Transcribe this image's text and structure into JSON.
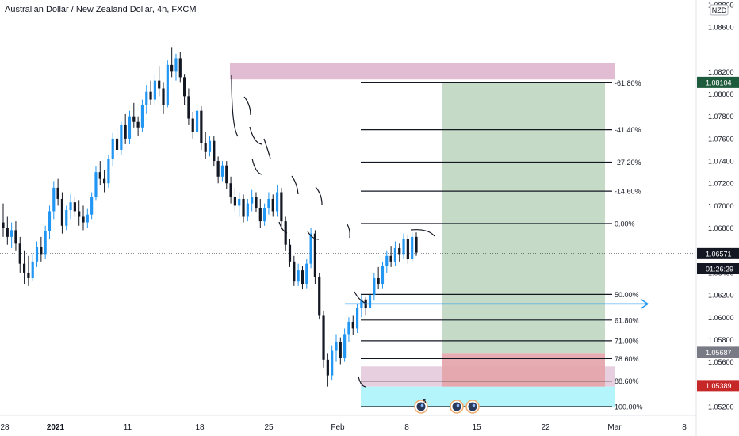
{
  "chart_data": {
    "type": "candlestick",
    "title": "Australian Dollar / New Zealand Dollar, 4h, FXCM",
    "currency_label": "NZD",
    "ylim": [
      1.052,
      1.0882
    ],
    "price_ticks": [
      "1.08800",
      "1.08600",
      "1.08200",
      "1.08000",
      "1.07800",
      "1.07600",
      "1.07400",
      "1.07200",
      "1.07000",
      "1.06800",
      "1.06400",
      "1.06200",
      "1.06000",
      "1.05800",
      "1.05600",
      "1.05200"
    ],
    "x_ticks": [
      "28",
      "2021",
      "11",
      "18",
      "25",
      "Feb",
      "8",
      "15",
      "22",
      "Mar",
      "8"
    ],
    "price_badges": [
      {
        "label": "1.08104",
        "value": 1.08104,
        "color": "#1e5a3c"
      },
      {
        "label": "1.06571",
        "value": 1.06571,
        "color": "#131722"
      },
      {
        "label": "01:26:29",
        "value": 1.06435,
        "color": "#131722"
      },
      {
        "label": "1.05687",
        "value": 1.05687,
        "color": "#787b86"
      },
      {
        "label": "1.05389",
        "value": 1.05389,
        "color": "#c62828"
      }
    ],
    "current_price": 1.06571,
    "candles": [
      {
        "o": 1.0685,
        "h": 1.0702,
        "l": 1.0672,
        "c": 1.068
      },
      {
        "o": 1.068,
        "h": 1.069,
        "l": 1.0665,
        "c": 1.0672
      },
      {
        "o": 1.0672,
        "h": 1.0685,
        "l": 1.0662,
        "c": 1.0678
      },
      {
        "o": 1.0678,
        "h": 1.0686,
        "l": 1.066,
        "c": 1.0666
      },
      {
        "o": 1.0666,
        "h": 1.0672,
        "l": 1.064,
        "c": 1.0648
      },
      {
        "o": 1.0648,
        "h": 1.066,
        "l": 1.063,
        "c": 1.064
      },
      {
        "o": 1.064,
        "h": 1.0655,
        "l": 1.0628,
        "c": 1.0635
      },
      {
        "o": 1.0635,
        "h": 1.0656,
        "l": 1.0633,
        "c": 1.065
      },
      {
        "o": 1.065,
        "h": 1.0668,
        "l": 1.0645,
        "c": 1.0663
      },
      {
        "o": 1.0663,
        "h": 1.0672,
        "l": 1.065,
        "c": 1.0656
      },
      {
        "o": 1.0656,
        "h": 1.0682,
        "l": 1.0652,
        "c": 1.0677
      },
      {
        "o": 1.0677,
        "h": 1.07,
        "l": 1.067,
        "c": 1.0695
      },
      {
        "o": 1.0695,
        "h": 1.0722,
        "l": 1.0688,
        "c": 1.0716
      },
      {
        "o": 1.0716,
        "h": 1.0724,
        "l": 1.07,
        "c": 1.0706
      },
      {
        "o": 1.0706,
        "h": 1.0712,
        "l": 1.0675,
        "c": 1.0682
      },
      {
        "o": 1.0682,
        "h": 1.07,
        "l": 1.0678,
        "c": 1.0696
      },
      {
        "o": 1.0696,
        "h": 1.071,
        "l": 1.0688,
        "c": 1.0703
      },
      {
        "o": 1.0703,
        "h": 1.0708,
        "l": 1.069,
        "c": 1.0695
      },
      {
        "o": 1.0695,
        "h": 1.0705,
        "l": 1.0682,
        "c": 1.069
      },
      {
        "o": 1.069,
        "h": 1.07,
        "l": 1.0678,
        "c": 1.0685
      },
      {
        "o": 1.0685,
        "h": 1.0697,
        "l": 1.068,
        "c": 1.0692
      },
      {
        "o": 1.0692,
        "h": 1.0712,
        "l": 1.0688,
        "c": 1.0708
      },
      {
        "o": 1.0708,
        "h": 1.0735,
        "l": 1.0705,
        "c": 1.073
      },
      {
        "o": 1.073,
        "h": 1.074,
        "l": 1.0718,
        "c": 1.0724
      },
      {
        "o": 1.0724,
        "h": 1.0732,
        "l": 1.0712,
        "c": 1.072
      },
      {
        "o": 1.072,
        "h": 1.0745,
        "l": 1.0716,
        "c": 1.0742
      },
      {
        "o": 1.0742,
        "h": 1.0765,
        "l": 1.0735,
        "c": 1.076
      },
      {
        "o": 1.076,
        "h": 1.077,
        "l": 1.0745,
        "c": 1.075
      },
      {
        "o": 1.075,
        "h": 1.0775,
        "l": 1.0745,
        "c": 1.0772
      },
      {
        "o": 1.0772,
        "h": 1.0782,
        "l": 1.0755,
        "c": 1.076
      },
      {
        "o": 1.076,
        "h": 1.0785,
        "l": 1.0755,
        "c": 1.078
      },
      {
        "o": 1.078,
        "h": 1.0792,
        "l": 1.077,
        "c": 1.0775
      },
      {
        "o": 1.0775,
        "h": 1.078,
        "l": 1.0762,
        "c": 1.077
      },
      {
        "o": 1.077,
        "h": 1.0795,
        "l": 1.0766,
        "c": 1.079
      },
      {
        "o": 1.079,
        "h": 1.0808,
        "l": 1.0782,
        "c": 1.0802
      },
      {
        "o": 1.0802,
        "h": 1.0812,
        "l": 1.079,
        "c": 1.0795
      },
      {
        "o": 1.0795,
        "h": 1.0818,
        "l": 1.079,
        "c": 1.0812
      },
      {
        "o": 1.0812,
        "h": 1.0825,
        "l": 1.0798,
        "c": 1.0805
      },
      {
        "o": 1.0805,
        "h": 1.081,
        "l": 1.0782,
        "c": 1.079
      },
      {
        "o": 1.079,
        "h": 1.083,
        "l": 1.0788,
        "c": 1.0826
      },
      {
        "o": 1.0826,
        "h": 1.0842,
        "l": 1.0815,
        "c": 1.082
      },
      {
        "o": 1.082,
        "h": 1.0836,
        "l": 1.0812,
        "c": 1.0832
      },
      {
        "o": 1.0832,
        "h": 1.0838,
        "l": 1.081,
        "c": 1.0815
      },
      {
        "o": 1.0815,
        "h": 1.0818,
        "l": 1.079,
        "c": 1.0798
      },
      {
        "o": 1.0798,
        "h": 1.0805,
        "l": 1.0772,
        "c": 1.0778
      },
      {
        "o": 1.0778,
        "h": 1.0784,
        "l": 1.076,
        "c": 1.0766
      },
      {
        "o": 1.0766,
        "h": 1.079,
        "l": 1.0762,
        "c": 1.0785
      },
      {
        "o": 1.0785,
        "h": 1.0789,
        "l": 1.075,
        "c": 1.0756
      },
      {
        "o": 1.0756,
        "h": 1.0766,
        "l": 1.0742,
        "c": 1.0748
      },
      {
        "o": 1.0748,
        "h": 1.0762,
        "l": 1.0744,
        "c": 1.0758
      },
      {
        "o": 1.0758,
        "h": 1.0762,
        "l": 1.0735,
        "c": 1.074
      },
      {
        "o": 1.074,
        "h": 1.0744,
        "l": 1.072,
        "c": 1.0726
      },
      {
        "o": 1.0726,
        "h": 1.074,
        "l": 1.0722,
        "c": 1.0736
      },
      {
        "o": 1.0736,
        "h": 1.074,
        "l": 1.0715,
        "c": 1.072
      },
      {
        "o": 1.072,
        "h": 1.0726,
        "l": 1.0702,
        "c": 1.0708
      },
      {
        "o": 1.0708,
        "h": 1.0716,
        "l": 1.0695,
        "c": 1.07
      },
      {
        "o": 1.07,
        "h": 1.0712,
        "l": 1.069,
        "c": 1.0706
      },
      {
        "o": 1.0706,
        "h": 1.071,
        "l": 1.0685,
        "c": 1.069
      },
      {
        "o": 1.069,
        "h": 1.0706,
        "l": 1.0686,
        "c": 1.0702
      },
      {
        "o": 1.0702,
        "h": 1.0714,
        "l": 1.0695,
        "c": 1.0708
      },
      {
        "o": 1.0708,
        "h": 1.0712,
        "l": 1.0694,
        "c": 1.0698
      },
      {
        "o": 1.0698,
        "h": 1.0706,
        "l": 1.068,
        "c": 1.0686
      },
      {
        "o": 1.0686,
        "h": 1.0702,
        "l": 1.0682,
        "c": 1.0698
      },
      {
        "o": 1.0698,
        "h": 1.0712,
        "l": 1.0692,
        "c": 1.0706
      },
      {
        "o": 1.0706,
        "h": 1.071,
        "l": 1.069,
        "c": 1.0695
      },
      {
        "o": 1.0695,
        "h": 1.0718,
        "l": 1.069,
        "c": 1.0712
      },
      {
        "o": 1.0712,
        "h": 1.0716,
        "l": 1.068,
        "c": 1.0686
      },
      {
        "o": 1.0686,
        "h": 1.069,
        "l": 1.066,
        "c": 1.0665
      },
      {
        "o": 1.0665,
        "h": 1.067,
        "l": 1.0645,
        "c": 1.065
      },
      {
        "o": 1.065,
        "h": 1.0655,
        "l": 1.0628,
        "c": 1.0632
      },
      {
        "o": 1.0632,
        "h": 1.0648,
        "l": 1.0628,
        "c": 1.0642
      },
      {
        "o": 1.0642,
        "h": 1.0646,
        "l": 1.0625,
        "c": 1.063
      },
      {
        "o": 1.063,
        "h": 1.0652,
        "l": 1.0626,
        "c": 1.0648
      },
      {
        "o": 1.0648,
        "h": 1.068,
        "l": 1.0644,
        "c": 1.0675
      },
      {
        "o": 1.0675,
        "h": 1.0678,
        "l": 1.063,
        "c": 1.0636
      },
      {
        "o": 1.0636,
        "h": 1.064,
        "l": 1.0598,
        "c": 1.0602
      },
      {
        "o": 1.0602,
        "h": 1.0606,
        "l": 1.0555,
        "c": 1.0562
      },
      {
        "o": 1.0562,
        "h": 1.0568,
        "l": 1.0538,
        "c": 1.0548
      },
      {
        "o": 1.0548,
        "h": 1.0575,
        "l": 1.0544,
        "c": 1.057
      },
      {
        "o": 1.057,
        "h": 1.0585,
        "l": 1.056,
        "c": 1.0578
      },
      {
        "o": 1.0578,
        "h": 1.0582,
        "l": 1.0558,
        "c": 1.0564
      },
      {
        "o": 1.0564,
        "h": 1.059,
        "l": 1.056,
        "c": 1.0585
      },
      {
        "o": 1.0585,
        "h": 1.06,
        "l": 1.0578,
        "c": 1.0596
      },
      {
        "o": 1.0596,
        "h": 1.0602,
        "l": 1.0584,
        "c": 1.059
      },
      {
        "o": 1.059,
        "h": 1.0612,
        "l": 1.0586,
        "c": 1.0608
      },
      {
        "o": 1.0608,
        "h": 1.062,
        "l": 1.06,
        "c": 1.0616
      },
      {
        "o": 1.0616,
        "h": 1.0618,
        "l": 1.0602,
        "c": 1.0608
      },
      {
        "o": 1.0608,
        "h": 1.0625,
        "l": 1.0604,
        "c": 1.062
      },
      {
        "o": 1.062,
        "h": 1.064,
        "l": 1.0615,
        "c": 1.0635
      },
      {
        "o": 1.0635,
        "h": 1.0645,
        "l": 1.0625,
        "c": 1.063
      },
      {
        "o": 1.063,
        "h": 1.065,
        "l": 1.0626,
        "c": 1.0646
      },
      {
        "o": 1.0646,
        "h": 1.066,
        "l": 1.064,
        "c": 1.0655
      },
      {
        "o": 1.0655,
        "h": 1.0664,
        "l": 1.0645,
        "c": 1.065
      },
      {
        "o": 1.065,
        "h": 1.0668,
        "l": 1.0646,
        "c": 1.0662
      },
      {
        "o": 1.0662,
        "h": 1.0666,
        "l": 1.065,
        "c": 1.0656
      },
      {
        "o": 1.0656,
        "h": 1.0675,
        "l": 1.0652,
        "c": 1.067
      },
      {
        "o": 1.067,
        "h": 1.0674,
        "l": 1.0648,
        "c": 1.0652
      },
      {
        "o": 1.0652,
        "h": 1.0676,
        "l": 1.065,
        "c": 1.0672
      },
      {
        "o": 1.0672,
        "h": 1.0676,
        "l": 1.0655,
        "c": 1.0658
      }
    ],
    "fib_upper": [
      {
        "label": "-61.80%",
        "value": 1.081
      },
      {
        "label": "-41.40%",
        "value": 1.0768
      },
      {
        "label": "-27.20%",
        "value": 1.0739
      },
      {
        "label": "-14.60%",
        "value": 1.0713
      },
      {
        "label": "0.00%",
        "value": 1.0684
      }
    ],
    "fib_lower": [
      {
        "label": "50.00%",
        "value": 1.06205
      },
      {
        "label": "61.80%",
        "value": 1.05975
      },
      {
        "label": "71.00%",
        "value": 1.0579
      },
      {
        "label": "78.60%",
        "value": 1.0563
      },
      {
        "label": "88.60%",
        "value": 1.0543
      },
      {
        "label": "100.00%",
        "value": 1.052
      }
    ],
    "zones": {
      "supply": [
        1.0813,
        1.0828
      ],
      "demand": [
        1.0538,
        1.0556
      ],
      "lower_band": [
        1.052,
        1.0538
      ],
      "profit": [
        1.0568,
        1.081
      ],
      "stop": [
        1.0538,
        1.0568
      ]
    },
    "entry_arrow_value": 1.0612,
    "event_markers": [
      "5"
    ],
    "colors": {
      "bull": "#2196f3",
      "bear": "#131722",
      "supply": "#e1bcd2",
      "demand": "#e7cfe0",
      "lower_band": "#b3f5fb",
      "profit": "#c2d8c4",
      "stop": "#e3a3a8",
      "arrow": "#2196f3"
    }
  }
}
